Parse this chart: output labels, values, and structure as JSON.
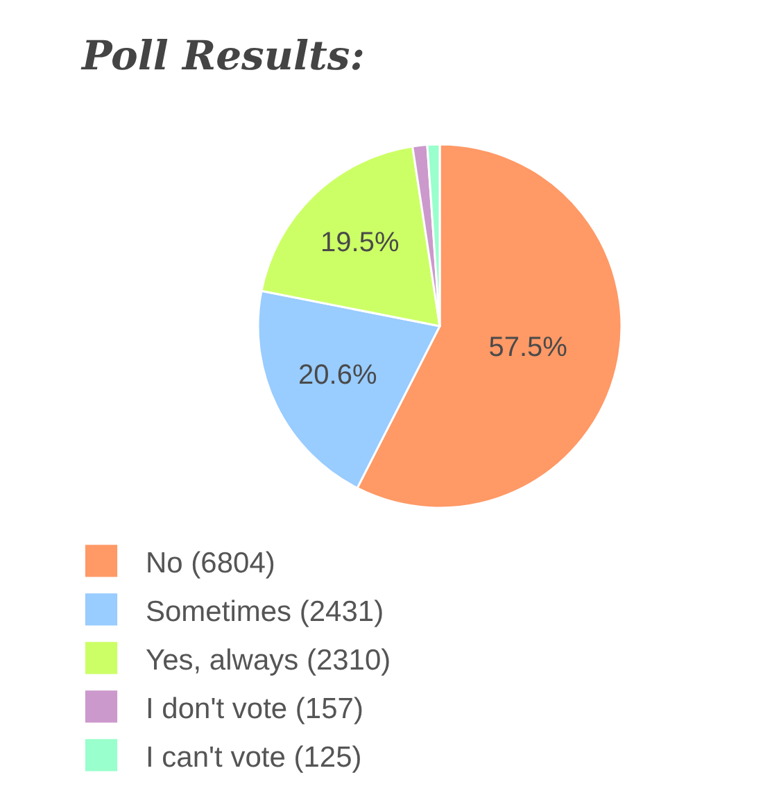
{
  "chart_data": {
    "type": "pie",
    "title": "Poll Results:",
    "categories": [
      "No (6804)",
      "Sometimes (2431)",
      "Yes, always (2310)",
      "I don't vote (157)",
      "I can't vote (125)"
    ],
    "values": [
      57.5,
      20.6,
      19.5,
      1.3,
      1.1
    ],
    "colors": [
      "#ff9966",
      "#99ccff",
      "#ccff66",
      "#cc99cc",
      "#99ffcc"
    ],
    "value_labels": [
      "57.5%",
      "20.6%",
      "19.5%",
      null,
      null
    ],
    "legend": "bottom left"
  }
}
